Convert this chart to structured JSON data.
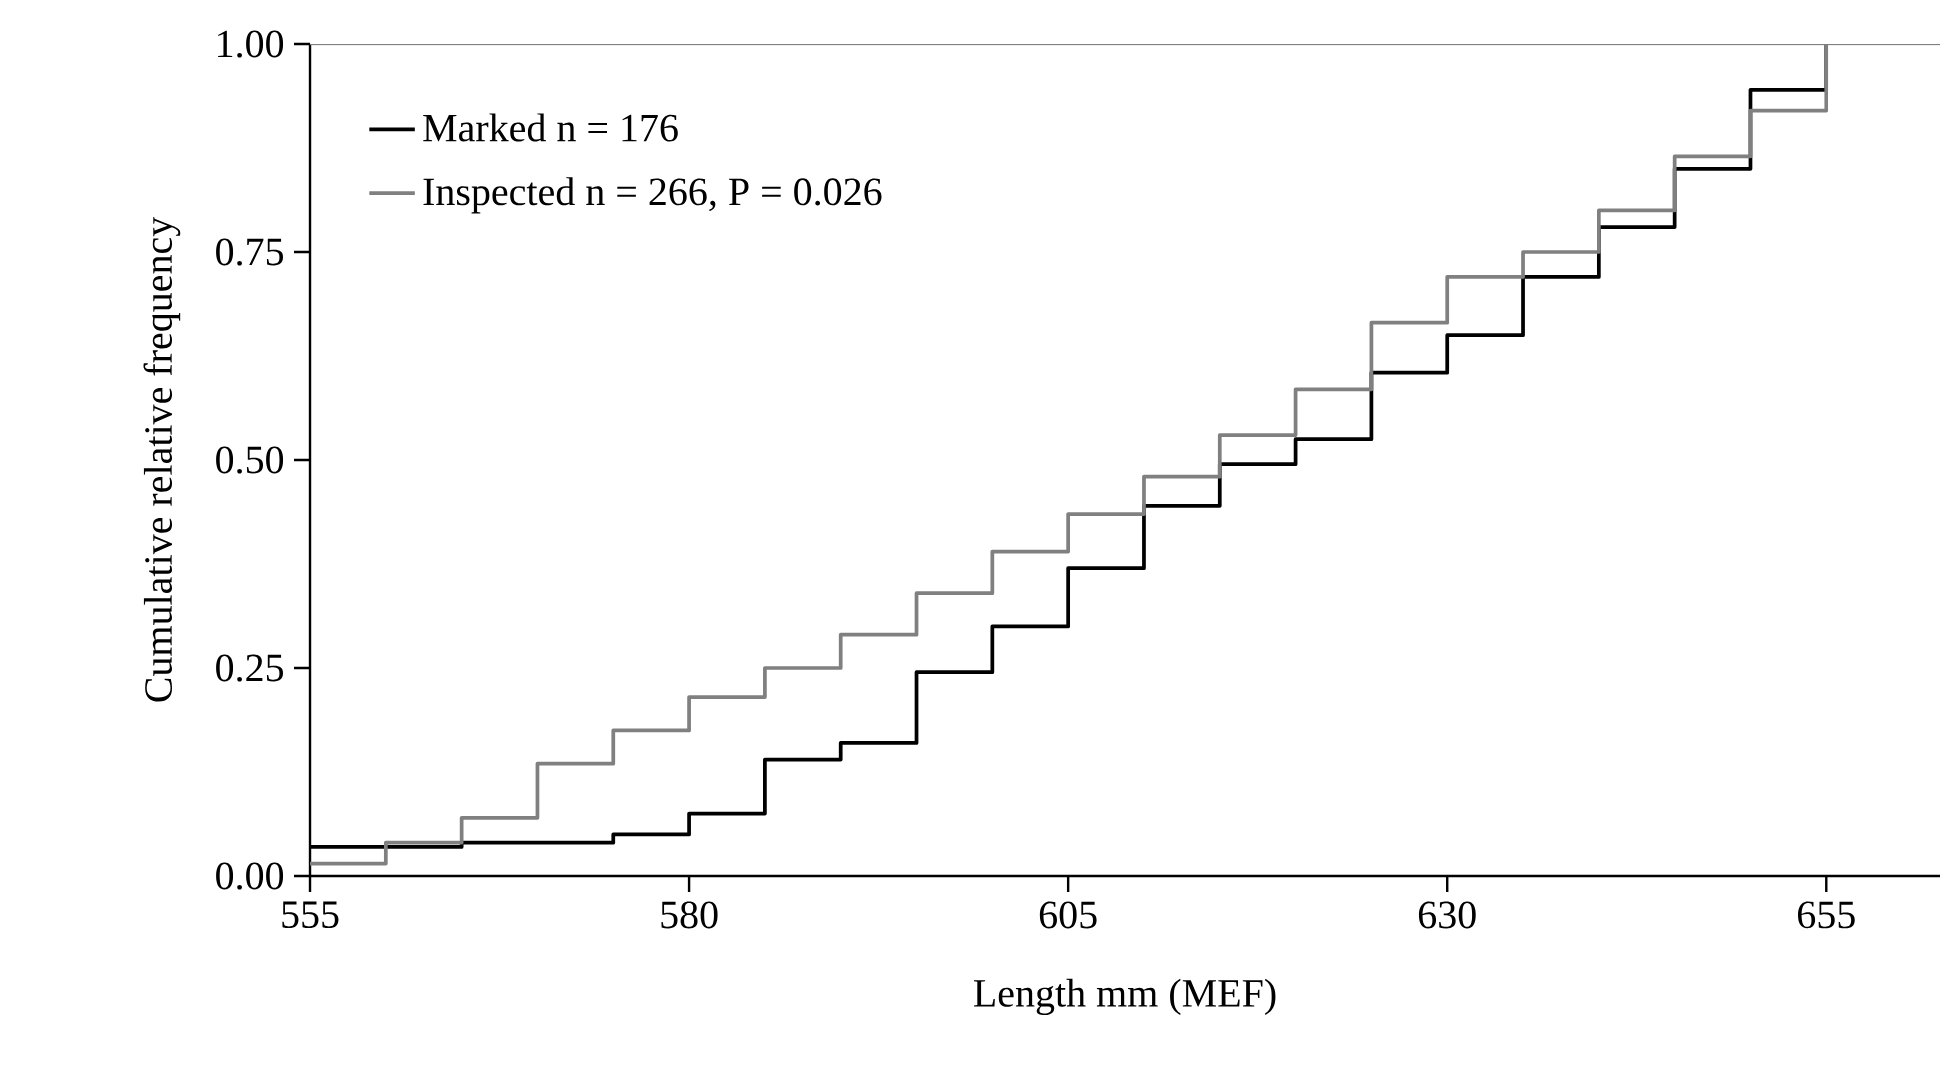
{
  "chart_data": {
    "type": "step",
    "xlabel": "Length mm (MEF)",
    "ylabel": "Cumulative relative frequency",
    "xlim": [
      555,
      662.5
    ],
    "xticks": [
      555,
      580,
      605,
      630,
      655
    ],
    "ylim": [
      0,
      1
    ],
    "yticks": [
      {
        "value": 0,
        "label": "0.00"
      },
      {
        "value": 0.25,
        "label": "0.25"
      },
      {
        "value": 0.5,
        "label": "0.50"
      },
      {
        "value": 0.75,
        "label": "0.75"
      },
      {
        "value": 1,
        "label": "1.00"
      }
    ],
    "legend": "top left",
    "grid": false,
    "marker": "none",
    "line_style": "solid",
    "series": [
      {
        "name": "Marked n = 176",
        "color": "#000000",
        "x": [
          555,
          565,
          575,
          580,
          585,
          590,
          595,
          600,
          605,
          610,
          615,
          620,
          625,
          630,
          635,
          640,
          645,
          650,
          655
        ],
        "values": [
          0.035,
          0.04,
          0.05,
          0.075,
          0.14,
          0.16,
          0.245,
          0.3,
          0.37,
          0.445,
          0.495,
          0.525,
          0.605,
          0.65,
          0.72,
          0.78,
          0.85,
          0.945,
          1.0
        ]
      },
      {
        "name": "Inspected n = 266, P = 0.026",
        "color": "#808080",
        "x": [
          555,
          560,
          565,
          570,
          575,
          580,
          585,
          590,
          595,
          600,
          605,
          610,
          615,
          620,
          625,
          630,
          635,
          640,
          645,
          650,
          655
        ],
        "values": [
          0.015,
          0.04,
          0.07,
          0.135,
          0.175,
          0.215,
          0.25,
          0.29,
          0.34,
          0.39,
          0.435,
          0.48,
          0.53,
          0.585,
          0.665,
          0.72,
          0.75,
          0.8,
          0.865,
          0.92,
          1.0
        ]
      }
    ]
  }
}
